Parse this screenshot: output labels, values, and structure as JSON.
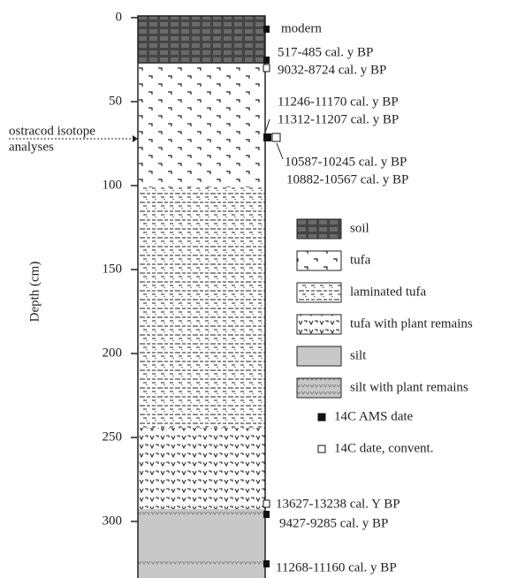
{
  "axis": {
    "title": "Depth (cm)",
    "ticks": [
      "0",
      "50",
      "100",
      "150",
      "200",
      "250",
      "300"
    ]
  },
  "annotation": {
    "lines": [
      "ostracod isotope",
      "analyses"
    ]
  },
  "dates": [
    "modern",
    "517-485 cal. y BP",
    "9032-8724 cal. y BP",
    "11246-11170 cal. y BP",
    "11312-11207 cal. y BP",
    "10587-10245 cal. y BP",
    "10882-10567 cal. y BP",
    "13627-13238 cal. Y BP",
    "9427-9285 cal. y BP",
    "11268-11160 cal. y BP"
  ],
  "legend": [
    "soil",
    "tufa",
    "laminated tufa",
    "tufa with plant remains",
    "silt",
    "silt with plant remains",
    "14C AMS date",
    "14C date, convent."
  ]
}
